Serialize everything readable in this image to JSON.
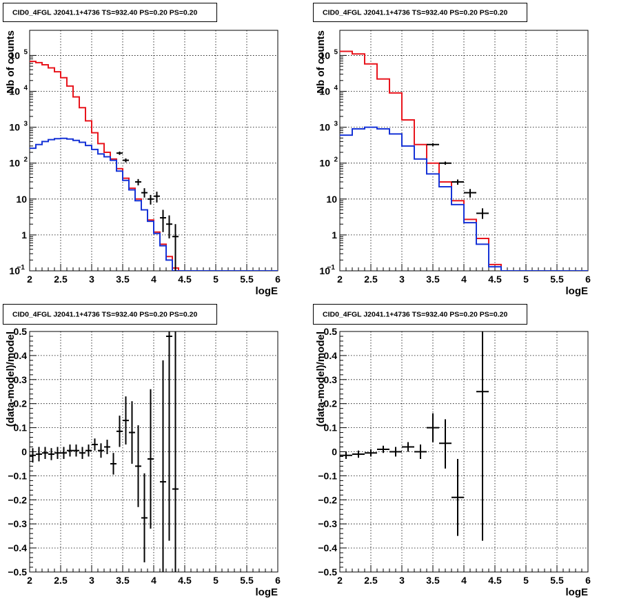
{
  "chart_data": [
    {
      "type": "line",
      "title": "CID0_4FGL J2041.1+4736 TS=932.40 PS=0.20 PS=0.20",
      "xlabel": "logE",
      "ylabel": "Nb of counts",
      "log_y": true,
      "grid": true,
      "xlim": [
        2,
        6
      ],
      "ylim": [
        0.1,
        500000
      ],
      "xticks": [
        "2",
        "2.5",
        "3",
        "3.5",
        "4",
        "4.5",
        "5",
        "5.5",
        "6"
      ],
      "yticks": [
        {
          "v": 0.1,
          "label": "10",
          "sup": "−1"
        },
        {
          "v": 1,
          "label": "1",
          "sup": ""
        },
        {
          "v": 10,
          "label": "10",
          "sup": ""
        },
        {
          "v": 100,
          "label": "10",
          "sup": "2"
        },
        {
          "v": 1000,
          "label": "10",
          "sup": "3"
        },
        {
          "v": 10000,
          "label": "10",
          "sup": "4"
        },
        {
          "v": 100000,
          "label": "10",
          "sup": "5"
        }
      ],
      "bin_edges_range": [
        2,
        6
      ],
      "bin_width": 0.1,
      "series": [
        {
          "color": "#e8141c",
          "values": [
            68000,
            63000,
            55000,
            45000,
            35000,
            24000,
            14000,
            7000,
            3500,
            1500,
            700,
            350,
            200,
            130,
            70,
            38,
            20,
            10,
            5,
            2.6,
            1.2,
            0.55,
            0.25,
            0.12,
            0.1,
            0.1,
            0.1,
            0.1,
            0.1,
            0.1,
            0.1,
            0.1,
            0.1,
            0.1,
            0.1,
            0.1,
            0.1,
            0.1,
            0.1,
            0.1
          ]
        },
        {
          "color": "#1532d6",
          "values": [
            260,
            330,
            400,
            450,
            480,
            490,
            470,
            430,
            380,
            310,
            240,
            180,
            150,
            120,
            60,
            33,
            18,
            9,
            5,
            2.4,
            1.1,
            0.5,
            0.2,
            0.1,
            0.1,
            0.1,
            0.1,
            0.1,
            0.1,
            0.1,
            0.1,
            0.1,
            0.1,
            0.1,
            0.1,
            0.1,
            0.1,
            0.1,
            0.1,
            0.1
          ]
        }
      ],
      "points": [
        {
          "x": 3.45,
          "y": 190,
          "ylo": 170,
          "yhi": 210
        },
        {
          "x": 3.55,
          "y": 120,
          "ylo": 105,
          "yhi": 135
        },
        {
          "x": 3.75,
          "y": 30,
          "ylo": 24,
          "yhi": 36
        },
        {
          "x": 3.85,
          "y": 15,
          "ylo": 11,
          "yhi": 20
        },
        {
          "x": 3.95,
          "y": 10,
          "ylo": 7,
          "yhi": 13
        },
        {
          "x": 4.05,
          "y": 12,
          "ylo": 8,
          "yhi": 16
        },
        {
          "x": 4.15,
          "y": 3,
          "ylo": 1.2,
          "yhi": 5
        },
        {
          "x": 4.25,
          "y": 2,
          "ylo": 0.8,
          "yhi": 3.5
        },
        {
          "x": 4.35,
          "y": 0.9,
          "ylo": 0.1,
          "yhi": 2
        }
      ]
    },
    {
      "type": "line",
      "title": "CID0_4FGL J2041.1+4736 TS=932.40 PS=0.20 PS=0.20",
      "xlabel": "logE",
      "ylabel": "Nb of counts",
      "log_y": true,
      "grid": true,
      "xlim": [
        2,
        6
      ],
      "ylim": [
        0.1,
        500000
      ],
      "xticks": [
        "2",
        "2.5",
        "3",
        "3.5",
        "4",
        "4.5",
        "5",
        "5.5",
        "6"
      ],
      "yticks": [
        {
          "v": 0.1,
          "label": "10",
          "sup": "−1"
        },
        {
          "v": 1,
          "label": "1",
          "sup": ""
        },
        {
          "v": 10,
          "label": "10",
          "sup": ""
        },
        {
          "v": 100,
          "label": "10",
          "sup": "2"
        },
        {
          "v": 1000,
          "label": "10",
          "sup": "3"
        },
        {
          "v": 10000,
          "label": "10",
          "sup": "4"
        },
        {
          "v": 100000,
          "label": "10",
          "sup": "5"
        }
      ],
      "bin_edges_range": [
        2,
        6
      ],
      "bin_width": 0.2,
      "series": [
        {
          "color": "#e8141c",
          "values": [
            130000,
            110000,
            58000,
            22000,
            9000,
            1600,
            330,
            100,
            30,
            9,
            2.7,
            0.8,
            0.15,
            0.1,
            0.1,
            0.1,
            0.1,
            0.1,
            0.1,
            0.1
          ]
        },
        {
          "color": "#1532d6",
          "values": [
            600,
            900,
            1000,
            900,
            650,
            300,
            130,
            50,
            22,
            7,
            2.2,
            0.55,
            0.13,
            0.1,
            0.1,
            0.1,
            0.1,
            0.1,
            0.1,
            0.1
          ]
        }
      ],
      "points": [
        {
          "x": 3.5,
          "y": 330,
          "ylo": 300,
          "yhi": 360
        },
        {
          "x": 3.7,
          "y": 100,
          "ylo": 90,
          "yhi": 110
        },
        {
          "x": 3.9,
          "y": 30,
          "ylo": 25,
          "yhi": 35
        },
        {
          "x": 4.1,
          "y": 15,
          "ylo": 11,
          "yhi": 19
        },
        {
          "x": 4.3,
          "y": 4,
          "ylo": 2.8,
          "yhi": 5.5
        }
      ]
    },
    {
      "type": "scatter",
      "title": "CID0_4FGL J2041.1+4736 TS=932.40 PS=0.20 PS=0.20",
      "xlabel": "logE",
      "ylabel": "(data-model)/model",
      "log_y": false,
      "grid": true,
      "xlim": [
        2,
        6
      ],
      "ylim": [
        -0.5,
        0.5
      ],
      "xticks": [
        "2",
        "2.5",
        "3",
        "3.5",
        "4",
        "4.5",
        "5",
        "5.5",
        "6"
      ],
      "yticks": [
        {
          "v": -0.5,
          "label": "−0.5",
          "sup": ""
        },
        {
          "v": -0.4,
          "label": "−0.4",
          "sup": ""
        },
        {
          "v": -0.3,
          "label": "−0.3",
          "sup": ""
        },
        {
          "v": -0.2,
          "label": "−0.2",
          "sup": ""
        },
        {
          "v": -0.1,
          "label": "−0.1",
          "sup": ""
        },
        {
          "v": 0,
          "label": "0",
          "sup": ""
        },
        {
          "v": 0.1,
          "label": "0.1",
          "sup": ""
        },
        {
          "v": 0.2,
          "label": "0.2",
          "sup": ""
        },
        {
          "v": 0.3,
          "label": "0.3",
          "sup": ""
        },
        {
          "v": 0.4,
          "label": "0.4",
          "sup": ""
        },
        {
          "v": 0.5,
          "label": "0.5",
          "sup": ""
        }
      ],
      "xerr": 0.05,
      "points": [
        {
          "x": 2.05,
          "y": -0.015,
          "ylo": -0.045,
          "yhi": 0.015
        },
        {
          "x": 2.15,
          "y": -0.01,
          "ylo": -0.04,
          "yhi": 0.02
        },
        {
          "x": 2.25,
          "y": -0.005,
          "ylo": -0.03,
          "yhi": 0.02
        },
        {
          "x": 2.35,
          "y": -0.01,
          "ylo": -0.035,
          "yhi": 0.015
        },
        {
          "x": 2.45,
          "y": -0.005,
          "ylo": -0.03,
          "yhi": 0.02
        },
        {
          "x": 2.55,
          "y": -0.005,
          "ylo": -0.03,
          "yhi": 0.02
        },
        {
          "x": 2.65,
          "y": 0.005,
          "ylo": -0.02,
          "yhi": 0.03
        },
        {
          "x": 2.75,
          "y": 0.005,
          "ylo": -0.02,
          "yhi": 0.03
        },
        {
          "x": 2.85,
          "y": -0.005,
          "ylo": -0.03,
          "yhi": 0.02
        },
        {
          "x": 2.95,
          "y": 0.005,
          "ylo": -0.02,
          "yhi": 0.03
        },
        {
          "x": 3.05,
          "y": 0.03,
          "ylo": 0.005,
          "yhi": 0.055
        },
        {
          "x": 3.15,
          "y": 0.005,
          "ylo": -0.025,
          "yhi": 0.035
        },
        {
          "x": 3.25,
          "y": 0.02,
          "ylo": -0.01,
          "yhi": 0.05
        },
        {
          "x": 3.35,
          "y": -0.05,
          "ylo": -0.095,
          "yhi": -0.005
        },
        {
          "x": 3.45,
          "y": 0.085,
          "ylo": 0.02,
          "yhi": 0.15
        },
        {
          "x": 3.55,
          "y": 0.13,
          "ylo": 0.03,
          "yhi": 0.23
        },
        {
          "x": 3.65,
          "y": 0.08,
          "ylo": -0.05,
          "yhi": 0.21
        },
        {
          "x": 3.75,
          "y": -0.06,
          "ylo": -0.23,
          "yhi": 0.11
        },
        {
          "x": 3.85,
          "y": -0.275,
          "ylo": -0.46,
          "yhi": -0.09
        },
        {
          "x": 3.95,
          "y": -0.03,
          "ylo": -0.32,
          "yhi": 0.26
        },
        {
          "x": 4.15,
          "y": -0.125,
          "ylo": -0.5,
          "yhi": 0.38
        },
        {
          "x": 4.25,
          "y": 0.48,
          "ylo": -0.37,
          "yhi": 0.5
        },
        {
          "x": 4.35,
          "y": -0.155,
          "ylo": -0.5,
          "yhi": 0.5
        }
      ]
    },
    {
      "type": "scatter",
      "title": "CID0_4FGL J2041.1+4736 TS=932.40 PS=0.20 PS=0.20",
      "xlabel": "logE",
      "ylabel": "(data-model)/model",
      "log_y": false,
      "grid": true,
      "xlim": [
        2,
        6
      ],
      "ylim": [
        -0.5,
        0.5
      ],
      "xticks": [
        "2",
        "2.5",
        "3",
        "3.5",
        "4",
        "4.5",
        "5",
        "5.5",
        "6"
      ],
      "yticks": [
        {
          "v": -0.5,
          "label": "−0.5",
          "sup": ""
        },
        {
          "v": -0.4,
          "label": "−0.4",
          "sup": ""
        },
        {
          "v": -0.3,
          "label": "−0.3",
          "sup": ""
        },
        {
          "v": -0.2,
          "label": "−0.2",
          "sup": ""
        },
        {
          "v": -0.1,
          "label": "−0.1",
          "sup": ""
        },
        {
          "v": 0,
          "label": "0",
          "sup": ""
        },
        {
          "v": 0.1,
          "label": "0.1",
          "sup": ""
        },
        {
          "v": 0.2,
          "label": "0.2",
          "sup": ""
        },
        {
          "v": 0.3,
          "label": "0.3",
          "sup": ""
        },
        {
          "v": 0.4,
          "label": "0.4",
          "sup": ""
        },
        {
          "v": 0.5,
          "label": "0.5",
          "sup": ""
        }
      ],
      "xerr": 0.1,
      "points": [
        {
          "x": 2.1,
          "y": -0.015,
          "ylo": -0.03,
          "yhi": 0.0
        },
        {
          "x": 2.3,
          "y": -0.01,
          "ylo": -0.025,
          "yhi": 0.005
        },
        {
          "x": 2.5,
          "y": -0.005,
          "ylo": -0.02,
          "yhi": 0.01
        },
        {
          "x": 2.7,
          "y": 0.01,
          "ylo": -0.005,
          "yhi": 0.025
        },
        {
          "x": 2.9,
          "y": 0.0,
          "ylo": -0.02,
          "yhi": 0.02
        },
        {
          "x": 3.1,
          "y": 0.02,
          "ylo": 0.0,
          "yhi": 0.04
        },
        {
          "x": 3.3,
          "y": 0.0,
          "ylo": -0.03,
          "yhi": 0.03
        },
        {
          "x": 3.5,
          "y": 0.1,
          "ylo": 0.04,
          "yhi": 0.16
        },
        {
          "x": 3.7,
          "y": 0.035,
          "ylo": -0.07,
          "yhi": 0.135
        },
        {
          "x": 3.9,
          "y": -0.19,
          "ylo": -0.35,
          "yhi": -0.03
        },
        {
          "x": 4.3,
          "y": 0.25,
          "ylo": -0.37,
          "yhi": 0.5
        }
      ]
    }
  ]
}
